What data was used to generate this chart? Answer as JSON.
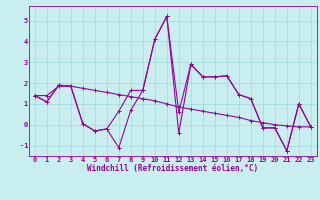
{
  "xlabel": "Windchill (Refroidissement éolien,°C)",
  "background_color": "#c8eef0",
  "line_color": "#990099",
  "xlim": [
    -0.5,
    23.5
  ],
  "ylim": [
    -1.5,
    5.7
  ],
  "yticks": [
    -1,
    0,
    1,
    2,
    3,
    4,
    5
  ],
  "xticks": [
    0,
    1,
    2,
    3,
    4,
    5,
    6,
    7,
    8,
    9,
    10,
    11,
    12,
    13,
    14,
    15,
    16,
    17,
    18,
    19,
    20,
    21,
    22,
    23
  ],
  "series1_x": [
    0,
    1,
    2,
    3,
    4,
    5,
    6,
    7,
    8,
    9,
    10,
    11,
    12,
    13,
    14,
    15,
    16,
    17,
    18,
    19,
    20,
    21,
    22,
    23
  ],
  "series1_y": [
    1.4,
    1.1,
    1.9,
    1.85,
    0.05,
    -0.3,
    -0.2,
    -1.1,
    0.7,
    1.65,
    4.1,
    5.2,
    -0.4,
    2.9,
    2.3,
    2.3,
    2.35,
    1.45,
    1.25,
    -0.15,
    -0.15,
    -1.25,
    1.0,
    -0.1
  ],
  "series2_x": [
    0,
    1,
    2,
    3,
    4,
    5,
    6,
    7,
    8,
    9,
    10,
    11,
    12,
    13,
    14,
    15,
    16,
    17,
    18,
    19,
    20,
    21,
    22,
    23
  ],
  "series2_y": [
    1.4,
    1.1,
    1.9,
    1.85,
    0.05,
    -0.3,
    -0.2,
    0.65,
    1.65,
    1.65,
    4.1,
    5.2,
    0.6,
    2.9,
    2.3,
    2.3,
    2.35,
    1.45,
    1.25,
    -0.15,
    -0.15,
    -1.25,
    1.0,
    -0.1
  ],
  "series3_x": [
    0,
    1,
    2,
    3,
    4,
    5,
    6,
    7,
    8,
    9,
    10,
    11,
    12,
    13,
    14,
    15,
    16,
    17,
    18,
    19,
    20,
    21,
    22,
    23
  ],
  "series3_y": [
    1.4,
    1.4,
    1.85,
    1.85,
    1.75,
    1.65,
    1.55,
    1.45,
    1.35,
    1.25,
    1.15,
    1.0,
    0.85,
    0.75,
    0.65,
    0.55,
    0.45,
    0.35,
    0.2,
    0.1,
    0.0,
    -0.05,
    -0.1,
    -0.1
  ],
  "grid_color": "#a0d8dc",
  "fontsize_xlabel": 5.5,
  "fontsize_ticks": 5.0
}
